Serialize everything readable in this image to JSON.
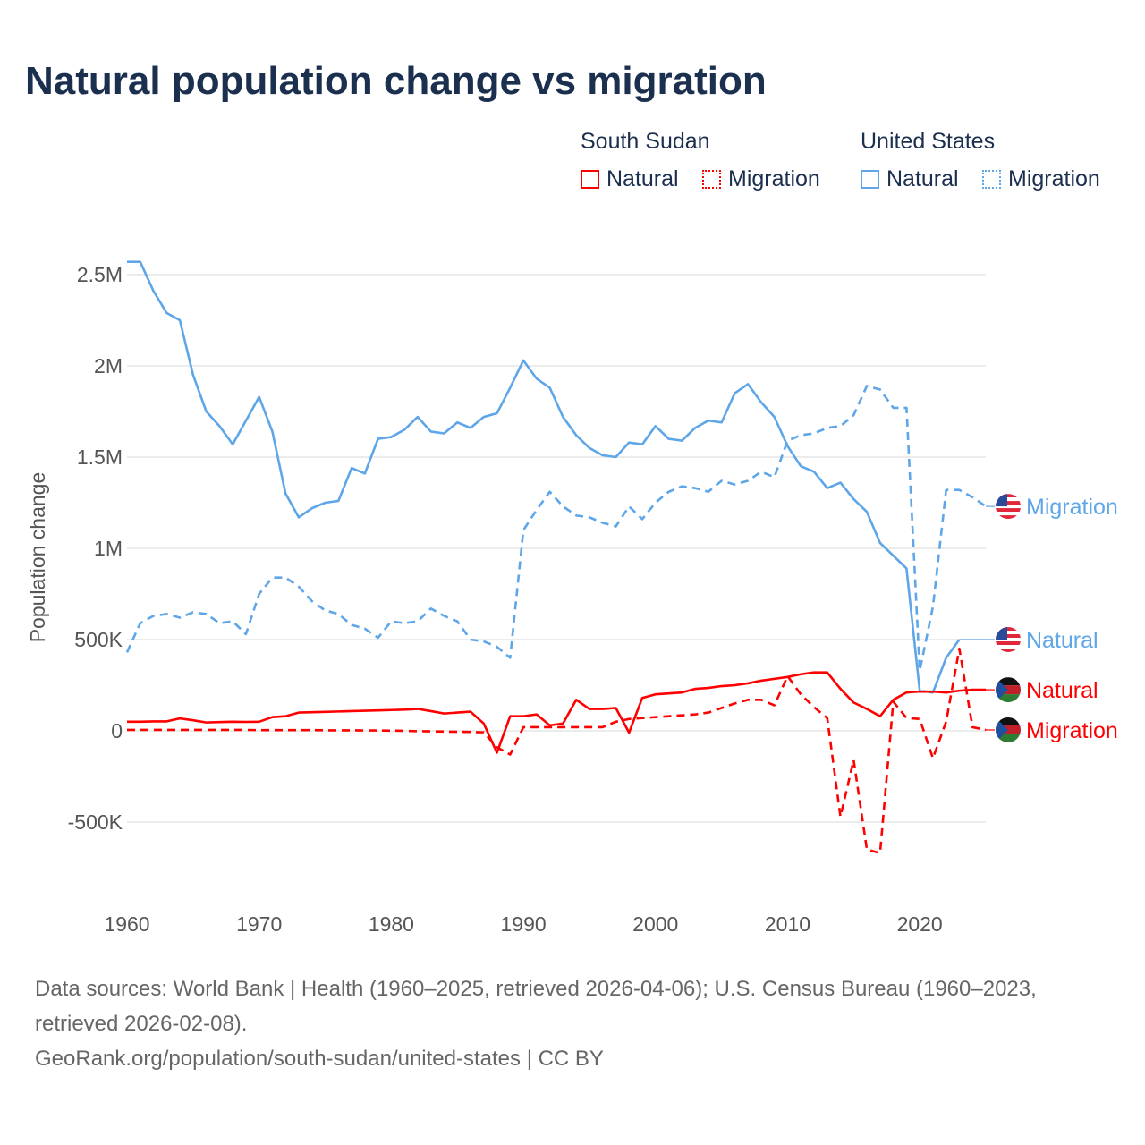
{
  "title": "Natural population change vs migration",
  "legend": {
    "groups": [
      {
        "name": "South Sudan",
        "color": "#ff0000",
        "items": [
          "Natural",
          "Migration"
        ]
      },
      {
        "name": "United States",
        "color": "#5ea6e8",
        "items": [
          "Natural",
          "Migration"
        ]
      }
    ]
  },
  "footer": {
    "sources": "Data sources: World Bank | Health (1960–2025, retrieved 2026-04-06); U.S. Census Bureau (1960–2023, retrieved 2026-02-08).",
    "credit": "GeoRank.org/population/south-sudan/united-states | CC BY"
  },
  "chart_data": {
    "type": "line",
    "title": "Natural population change vs migration",
    "ylabel": "Population change",
    "xlabel": "",
    "xlim": [
      1960,
      2025
    ],
    "ylim": [
      -700000,
      2600000
    ],
    "xticks": [
      1960,
      1970,
      1980,
      1990,
      2000,
      2010,
      2020
    ],
    "yticks": [
      {
        "v": -500000,
        "label": "-500K"
      },
      {
        "v": 0,
        "label": "0"
      },
      {
        "v": 500000,
        "label": "500K"
      },
      {
        "v": 1000000,
        "label": "1M"
      },
      {
        "v": 1500000,
        "label": "1.5M"
      },
      {
        "v": 2000000,
        "label": "2M"
      },
      {
        "v": 2500000,
        "label": "2.5M"
      }
    ],
    "grid": true,
    "series": [
      {
        "name": "United States Natural",
        "end_label": "Natural",
        "color": "#5ea6e8",
        "dash": false,
        "start": 1960,
        "values_m": [
          2.57,
          2.57,
          2.41,
          2.29,
          2.25,
          1.95,
          1.75,
          1.67,
          1.57,
          1.7,
          1.83,
          1.64,
          1.3,
          1.17,
          1.22,
          1.25,
          1.26,
          1.44,
          1.41,
          1.6,
          1.61,
          1.65,
          1.72,
          1.64,
          1.63,
          1.69,
          1.66,
          1.72,
          1.74,
          1.88,
          2.03,
          1.93,
          1.88,
          1.72,
          1.62,
          1.55,
          1.51,
          1.5,
          1.58,
          1.57,
          1.67,
          1.6,
          1.59,
          1.66,
          1.7,
          1.69,
          1.85,
          1.9,
          1.8,
          1.72,
          1.56,
          1.45,
          1.42,
          1.33,
          1.36,
          1.27,
          1.2,
          1.03,
          0.96,
          0.89,
          0.22,
          0.21,
          0.4,
          0.5
        ]
      },
      {
        "name": "United States Migration",
        "end_label": "Migration",
        "color": "#5ea6e8",
        "dash": true,
        "start": 1960,
        "values_m": [
          0.43,
          0.59,
          0.63,
          0.64,
          0.62,
          0.65,
          0.64,
          0.59,
          0.6,
          0.53,
          0.75,
          0.84,
          0.84,
          0.79,
          0.71,
          0.66,
          0.64,
          0.58,
          0.56,
          0.51,
          0.6,
          0.59,
          0.6,
          0.67,
          0.63,
          0.6,
          0.5,
          0.49,
          0.46,
          0.4,
          1.1,
          1.21,
          1.31,
          1.23,
          1.18,
          1.17,
          1.14,
          1.12,
          1.23,
          1.16,
          1.25,
          1.31,
          1.34,
          1.33,
          1.31,
          1.37,
          1.35,
          1.37,
          1.42,
          1.39,
          1.59,
          1.62,
          1.63,
          1.66,
          1.67,
          1.73,
          1.89,
          1.87,
          1.77,
          1.77,
          0.33,
          0.68,
          1.32,
          1.32,
          1.28,
          1.23
        ]
      },
      {
        "name": "South Sudan Natural",
        "end_label": "Natural",
        "color": "#ff0000",
        "dash": false,
        "start": 1960,
        "values_m": [
          0.05,
          0.05,
          0.052,
          0.052,
          0.068,
          0.058,
          0.046,
          0.048,
          0.05,
          0.049,
          0.05,
          0.075,
          0.08,
          0.1,
          0.102,
          0.104,
          0.106,
          0.108,
          0.11,
          0.112,
          0.114,
          0.116,
          0.12,
          0.108,
          0.095,
          0.1,
          0.105,
          0.04,
          -0.12,
          0.08,
          0.08,
          0.09,
          0.03,
          0.04,
          0.17,
          0.12,
          0.12,
          0.125,
          -0.01,
          0.18,
          0.2,
          0.205,
          0.21,
          0.23,
          0.235,
          0.245,
          0.25,
          0.26,
          0.275,
          0.285,
          0.295,
          0.31,
          0.32,
          0.32,
          0.23,
          0.155,
          0.12,
          0.08,
          0.17,
          0.21,
          0.215,
          0.215,
          0.21,
          0.22,
          0.225,
          0.225
        ]
      },
      {
        "name": "South Sudan Migration",
        "end_label": "Migration",
        "color": "#ff0000",
        "dash": true,
        "start": 1960,
        "values_m": [
          0.005,
          0.005,
          0.005,
          0.005,
          0.005,
          0.005,
          0.005,
          0.005,
          0.005,
          0.005,
          0.004,
          0.004,
          0.004,
          0.004,
          0.004,
          0.003,
          0.003,
          0.003,
          0.002,
          0.002,
          0.001,
          0,
          -0.002,
          -0.003,
          -0.004,
          -0.005,
          -0.006,
          -0.008,
          -0.09,
          -0.13,
          0.02,
          0.02,
          0.02,
          0.02,
          0.02,
          0.02,
          0.02,
          0.05,
          0.065,
          0.07,
          0.075,
          0.08,
          0.085,
          0.09,
          0.1,
          0.125,
          0.15,
          0.17,
          0.17,
          0.14,
          0.3,
          0.2,
          0.13,
          0.07,
          -0.47,
          -0.16,
          -0.65,
          -0.67,
          0.16,
          0.07,
          0.065,
          -0.15,
          0.05,
          0.45,
          0.02,
          0.005
        ]
      }
    ]
  }
}
